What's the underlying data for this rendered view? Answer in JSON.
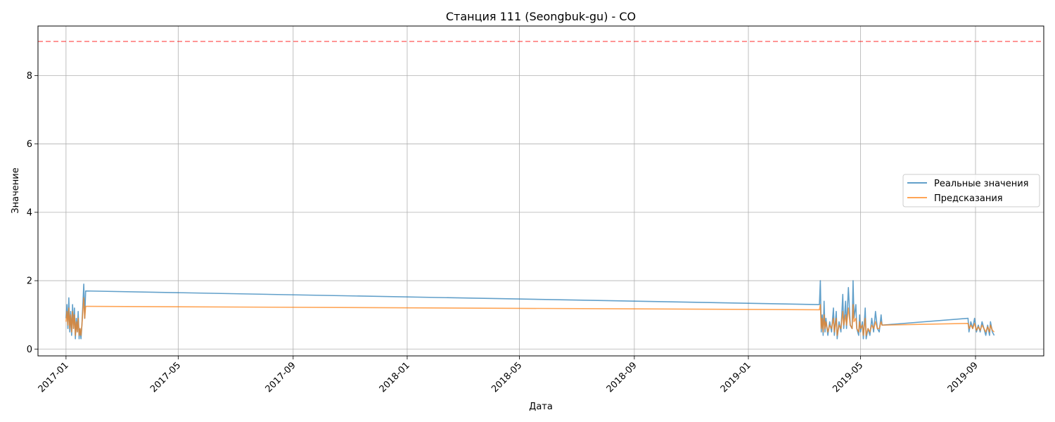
{
  "chart_data": {
    "type": "line",
    "title": "Станция 111 (Seongbuk-gu) - CO",
    "xlabel": "Дата",
    "ylabel": "Значение",
    "xlim": [
      "2016-12-02",
      "2019-11-13"
    ],
    "ylim": [
      -0.2,
      9.45
    ],
    "xticks": [
      "2017-01",
      "2017-05",
      "2017-09",
      "2018-01",
      "2018-05",
      "2018-09",
      "2019-01",
      "2019-05",
      "2019-09"
    ],
    "yticks": [
      0,
      2,
      4,
      6,
      8
    ],
    "grid": true,
    "legend_position": "center-right",
    "threshold": {
      "value": 9.0,
      "color": "#ff0000",
      "style": "dashed"
    },
    "series": [
      {
        "name": "Реальные значения",
        "color": "#1f77b4",
        "points": [
          [
            "2017-01-01",
            0.9
          ],
          [
            "2017-01-02",
            1.3
          ],
          [
            "2017-01-03",
            0.6
          ],
          [
            "2017-01-04",
            1.5
          ],
          [
            "2017-01-05",
            0.5
          ],
          [
            "2017-01-06",
            1.1
          ],
          [
            "2017-01-07",
            0.4
          ],
          [
            "2017-01-08",
            1.3
          ],
          [
            "2017-01-09",
            0.6
          ],
          [
            "2017-01-10",
            1.2
          ],
          [
            "2017-01-11",
            0.3
          ],
          [
            "2017-01-12",
            0.9
          ],
          [
            "2017-01-13",
            0.5
          ],
          [
            "2017-01-14",
            1.1
          ],
          [
            "2017-01-15",
            0.3
          ],
          [
            "2017-01-16",
            0.6
          ],
          [
            "2017-01-17",
            0.3
          ],
          [
            "2017-01-18",
            0.7
          ],
          [
            "2017-01-19",
            1.3
          ],
          [
            "2017-01-20",
            1.9
          ],
          [
            "2017-01-21",
            0.9
          ],
          [
            "2017-01-22",
            1.7
          ],
          [
            "2019-03-18",
            1.3
          ],
          [
            "2019-03-19",
            2.0
          ],
          [
            "2019-03-20",
            0.5
          ],
          [
            "2019-03-21",
            1.0
          ],
          [
            "2019-03-22",
            0.4
          ],
          [
            "2019-03-23",
            1.4
          ],
          [
            "2019-03-24",
            0.5
          ],
          [
            "2019-03-25",
            0.9
          ],
          [
            "2019-03-27",
            0.4
          ],
          [
            "2019-03-29",
            0.8
          ],
          [
            "2019-03-31",
            0.5
          ],
          [
            "2019-04-02",
            1.2
          ],
          [
            "2019-04-03",
            0.4
          ],
          [
            "2019-04-05",
            1.1
          ],
          [
            "2019-04-06",
            0.3
          ],
          [
            "2019-04-08",
            0.8
          ],
          [
            "2019-04-10",
            0.5
          ],
          [
            "2019-04-12",
            1.6
          ],
          [
            "2019-04-13",
            0.6
          ],
          [
            "2019-04-15",
            1.4
          ],
          [
            "2019-04-16",
            0.6
          ],
          [
            "2019-04-18",
            1.8
          ],
          [
            "2019-04-20",
            0.7
          ],
          [
            "2019-04-22",
            0.6
          ],
          [
            "2019-04-23",
            2.0
          ],
          [
            "2019-04-24",
            0.9
          ],
          [
            "2019-04-26",
            1.3
          ],
          [
            "2019-04-27",
            0.6
          ],
          [
            "2019-04-29",
            0.4
          ],
          [
            "2019-04-30",
            1.0
          ],
          [
            "2019-05-01",
            0.5
          ],
          [
            "2019-05-03",
            0.8
          ],
          [
            "2019-05-04",
            0.3
          ],
          [
            "2019-05-06",
            1.2
          ],
          [
            "2019-05-07",
            0.3
          ],
          [
            "2019-05-09",
            0.6
          ],
          [
            "2019-05-11",
            0.4
          ],
          [
            "2019-05-13",
            0.9
          ],
          [
            "2019-05-15",
            0.5
          ],
          [
            "2019-05-17",
            1.1
          ],
          [
            "2019-05-19",
            0.6
          ],
          [
            "2019-05-21",
            0.5
          ],
          [
            "2019-05-23",
            1.0
          ],
          [
            "2019-05-24",
            0.7
          ],
          [
            "2019-08-24",
            0.9
          ],
          [
            "2019-08-25",
            0.5
          ],
          [
            "2019-08-27",
            0.8
          ],
          [
            "2019-08-29",
            0.6
          ],
          [
            "2019-08-31",
            0.9
          ],
          [
            "2019-09-02",
            0.5
          ],
          [
            "2019-09-04",
            0.7
          ],
          [
            "2019-09-06",
            0.5
          ],
          [
            "2019-09-08",
            0.8
          ],
          [
            "2019-09-10",
            0.6
          ],
          [
            "2019-09-12",
            0.4
          ],
          [
            "2019-09-14",
            0.7
          ],
          [
            "2019-09-16",
            0.4
          ],
          [
            "2019-09-17",
            0.8
          ],
          [
            "2019-09-19",
            0.5
          ],
          [
            "2019-09-21",
            0.4
          ]
        ]
      },
      {
        "name": "Предсказания",
        "color": "#ff7f0e",
        "points": [
          [
            "2017-01-01",
            0.8
          ],
          [
            "2017-01-02",
            1.1
          ],
          [
            "2017-01-03",
            0.7
          ],
          [
            "2017-01-04",
            1.2
          ],
          [
            "2017-01-05",
            0.6
          ],
          [
            "2017-01-06",
            1.0
          ],
          [
            "2017-01-07",
            0.5
          ],
          [
            "2017-01-08",
            1.1
          ],
          [
            "2017-01-09",
            0.6
          ],
          [
            "2017-01-10",
            1.0
          ],
          [
            "2017-01-11",
            0.4
          ],
          [
            "2017-01-12",
            0.8
          ],
          [
            "2017-01-13",
            0.5
          ],
          [
            "2017-01-14",
            0.9
          ],
          [
            "2017-01-15",
            0.4
          ],
          [
            "2017-01-16",
            0.6
          ],
          [
            "2017-01-17",
            0.4
          ],
          [
            "2017-01-18",
            0.7
          ],
          [
            "2017-01-19",
            1.1
          ],
          [
            "2017-01-20",
            1.5
          ],
          [
            "2017-01-21",
            0.9
          ],
          [
            "2017-01-22",
            1.25
          ],
          [
            "2019-03-18",
            1.15
          ],
          [
            "2019-03-19",
            1.3
          ],
          [
            "2019-03-20",
            0.6
          ],
          [
            "2019-03-21",
            0.9
          ],
          [
            "2019-03-22",
            0.5
          ],
          [
            "2019-03-23",
            1.0
          ],
          [
            "2019-03-24",
            0.6
          ],
          [
            "2019-03-25",
            0.8
          ],
          [
            "2019-03-27",
            0.5
          ],
          [
            "2019-03-29",
            0.7
          ],
          [
            "2019-03-31",
            0.6
          ],
          [
            "2019-04-02",
            0.9
          ],
          [
            "2019-04-03",
            0.5
          ],
          [
            "2019-04-05",
            0.9
          ],
          [
            "2019-04-06",
            0.4
          ],
          [
            "2019-04-08",
            0.7
          ],
          [
            "2019-04-10",
            0.6
          ],
          [
            "2019-04-12",
            1.1
          ],
          [
            "2019-04-13",
            0.7
          ],
          [
            "2019-04-15",
            1.0
          ],
          [
            "2019-04-16",
            0.7
          ],
          [
            "2019-04-18",
            1.2
          ],
          [
            "2019-04-20",
            0.7
          ],
          [
            "2019-04-22",
            0.6
          ],
          [
            "2019-04-23",
            1.3
          ],
          [
            "2019-04-24",
            0.8
          ],
          [
            "2019-04-26",
            0.9
          ],
          [
            "2019-04-27",
            0.6
          ],
          [
            "2019-04-29",
            0.5
          ],
          [
            "2019-04-30",
            0.8
          ],
          [
            "2019-05-01",
            0.6
          ],
          [
            "2019-05-03",
            0.7
          ],
          [
            "2019-05-04",
            0.4
          ],
          [
            "2019-05-06",
            0.9
          ],
          [
            "2019-05-07",
            0.4
          ],
          [
            "2019-05-09",
            0.6
          ],
          [
            "2019-05-11",
            0.5
          ],
          [
            "2019-05-13",
            0.7
          ],
          [
            "2019-05-15",
            0.6
          ],
          [
            "2019-05-17",
            0.8
          ],
          [
            "2019-05-19",
            0.6
          ],
          [
            "2019-05-21",
            0.6
          ],
          [
            "2019-05-23",
            0.8
          ],
          [
            "2019-05-24",
            0.7
          ],
          [
            "2019-08-24",
            0.75
          ],
          [
            "2019-08-25",
            0.6
          ],
          [
            "2019-08-27",
            0.7
          ],
          [
            "2019-08-29",
            0.6
          ],
          [
            "2019-08-31",
            0.75
          ],
          [
            "2019-09-02",
            0.55
          ],
          [
            "2019-09-04",
            0.65
          ],
          [
            "2019-09-06",
            0.55
          ],
          [
            "2019-09-08",
            0.7
          ],
          [
            "2019-09-10",
            0.6
          ],
          [
            "2019-09-12",
            0.5
          ],
          [
            "2019-09-14",
            0.65
          ],
          [
            "2019-09-16",
            0.5
          ],
          [
            "2019-09-17",
            0.7
          ],
          [
            "2019-09-19",
            0.55
          ],
          [
            "2019-09-21",
            0.5
          ]
        ]
      }
    ]
  }
}
